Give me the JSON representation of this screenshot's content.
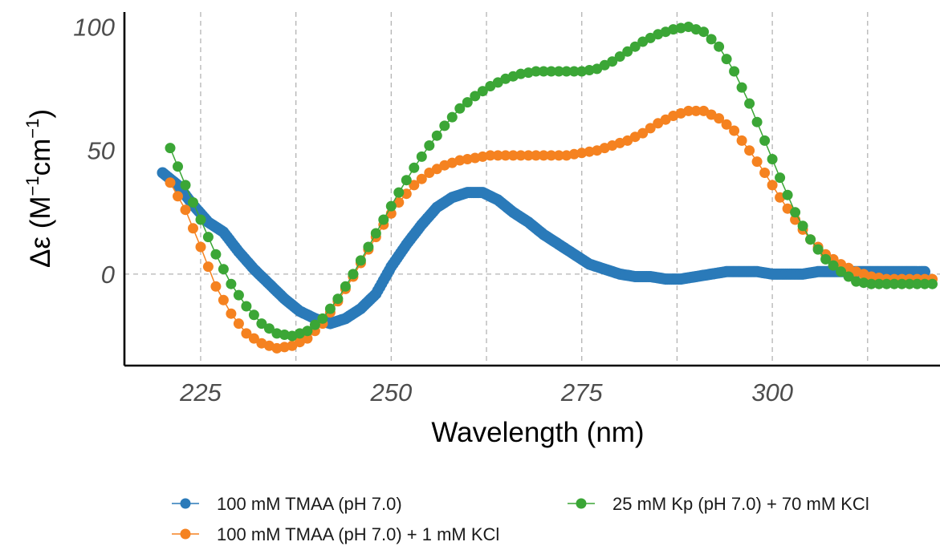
{
  "chart_data": {
    "type": "line",
    "xlabel": "Wavelength (nm)",
    "ylabel": "Δε (M⁻¹cm⁻¹)",
    "xlim": [
      215,
      322
    ],
    "ylim": [
      -37,
      106
    ],
    "x_ticks": [
      225,
      250,
      275,
      300
    ],
    "y_ticks": [
      0,
      50,
      100
    ],
    "x_gridlines": [
      225,
      237.5,
      250,
      262.5,
      275,
      287.5,
      300,
      312.5
    ],
    "grid": true,
    "legend": "bottom",
    "markers": "filled circles",
    "series": [
      {
        "name": "100 mM TMAA (pH 7.0)",
        "color": "#2a7ab9",
        "x": [
          220,
          222,
          224,
          226,
          228,
          230,
          232,
          234,
          236,
          238,
          240,
          242,
          244,
          246,
          248,
          250,
          252,
          254,
          256,
          258,
          260,
          262,
          264,
          266,
          268,
          270,
          272,
          274,
          276,
          278,
          280,
          282,
          284,
          286,
          288,
          290,
          292,
          294,
          296,
          298,
          300,
          302,
          304,
          306,
          308,
          310,
          312,
          314,
          316,
          318,
          320
        ],
        "y": [
          41,
          36,
          28,
          21,
          17,
          9,
          2,
          -4,
          -10,
          -15,
          -18,
          -20,
          -18,
          -14,
          -8,
          3,
          12,
          20,
          27,
          31,
          33,
          33,
          30,
          25,
          21,
          16,
          12,
          8,
          4,
          2,
          0,
          -1,
          -1,
          -2,
          -2,
          -1,
          0,
          1,
          1,
          1,
          0,
          0,
          0,
          1,
          1,
          1,
          1,
          1,
          1,
          1,
          1
        ]
      },
      {
        "name": "100 mM TMAA (pH 7.0) + 1 mM KCl",
        "color": "#f58220",
        "x": [
          221,
          223,
          225,
          227,
          229,
          231,
          233,
          235,
          237,
          239,
          241,
          243,
          245,
          247,
          249,
          251,
          253,
          255,
          257,
          259,
          261,
          263,
          265,
          267,
          269,
          271,
          273,
          275,
          277,
          279,
          281,
          283,
          285,
          287,
          289,
          291,
          293,
          295,
          297,
          299,
          301,
          303,
          305,
          307,
          309,
          311,
          313,
          315,
          317,
          319,
          321
        ],
        "y": [
          37,
          26,
          11,
          -5,
          -16,
          -24,
          -28,
          -30,
          -29,
          -26,
          -20,
          -11,
          -1,
          10,
          20,
          29,
          36,
          41,
          44,
          46,
          47,
          48,
          48,
          48,
          48,
          48,
          48,
          49,
          50,
          52,
          54,
          57,
          61,
          64,
          66,
          66,
          63,
          58,
          50,
          41,
          31,
          22,
          14,
          8,
          4,
          1,
          -1,
          -2,
          -2,
          -2,
          -2
        ]
      },
      {
        "name": "25 mM Kp (pH 7.0) + 70 mM KCl",
        "color": "#3ba636",
        "x": [
          221,
          223,
          225,
          227,
          229,
          231,
          233,
          235,
          237,
          239,
          241,
          243,
          245,
          247,
          249,
          251,
          253,
          255,
          257,
          259,
          261,
          263,
          265,
          267,
          269,
          271,
          273,
          275,
          277,
          279,
          281,
          283,
          285,
          287,
          289,
          291,
          293,
          295,
          297,
          299,
          301,
          303,
          305,
          307,
          309,
          311,
          313,
          315,
          317,
          319,
          321
        ],
        "y": [
          51,
          36,
          22,
          8,
          -4,
          -13,
          -20,
          -24,
          -25,
          -23,
          -18,
          -10,
          0,
          11,
          22,
          33,
          43,
          52,
          60,
          67,
          72,
          76,
          79,
          81,
          82,
          82,
          82,
          82,
          83,
          86,
          90,
          94,
          97,
          99,
          100,
          98,
          92,
          82,
          69,
          54,
          39,
          25,
          14,
          6,
          1,
          -3,
          -4,
          -4,
          -4,
          -4,
          -4
        ]
      }
    ]
  }
}
